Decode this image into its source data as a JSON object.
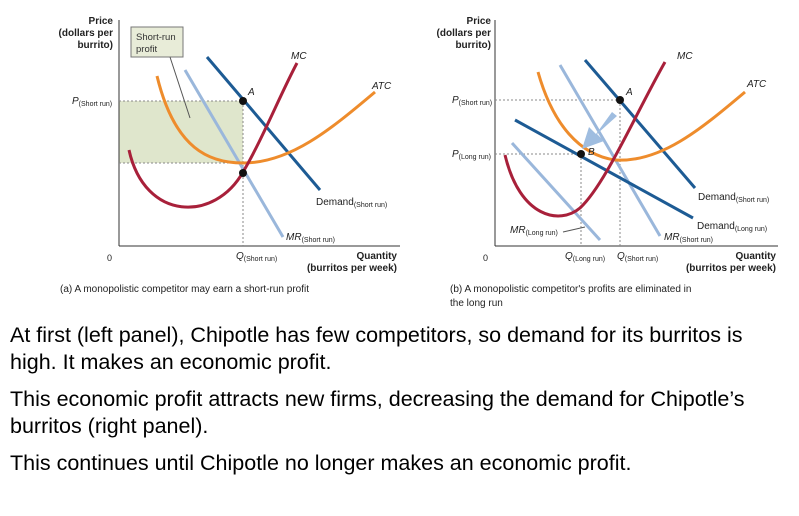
{
  "left_panel": {
    "y_axis_title": [
      "Price",
      "(dollars per",
      "burrito)"
    ],
    "x_axis_title": [
      "Quantity",
      "(burritos per week)"
    ],
    "origin": "0",
    "profit_box_label": [
      "Short-run",
      "profit"
    ],
    "labels": {
      "mc": "MC",
      "atc": "ATC",
      "point_a": "A",
      "demand": "Demand",
      "demand_sub": "(Short run)",
      "mr": "MR",
      "mr_sub": "(Short run)",
      "price": "P",
      "price_sub": "(Short run)",
      "quantity": "Q",
      "quantity_sub": "(Short run)"
    },
    "caption": "(a) A monopolistic competitor may earn a short-run profit"
  },
  "right_panel": {
    "y_axis_title": [
      "Price",
      "(dollars per",
      "burrito)"
    ],
    "x_axis_title": [
      "Quantity",
      "(burritos per week)"
    ],
    "origin": "0",
    "labels": {
      "mc": "MC",
      "atc": "ATC",
      "point_a": "A",
      "point_b": "B",
      "demand_sr": "Demand",
      "demand_sr_sub": "(Short run)",
      "demand_lr": "Demand",
      "demand_lr_sub": "(Long run)",
      "mr_sr": "MR",
      "mr_sr_sub": "(Short run)",
      "mr_lr": "MR",
      "mr_lr_sub": "(Long run)",
      "price_sr": "P",
      "price_sr_sub": "(Short run)",
      "price_lr": "P",
      "price_lr_sub": "(Long run)",
      "q_lr": "Q",
      "q_lr_sub": "(Long run)",
      "q_sr": "Q",
      "q_sr_sub": "(Short run)"
    },
    "caption": [
      "(b) A monopolistic competitor's profits are eliminated in",
      "the long run"
    ]
  },
  "colors": {
    "mc": "#a8203a",
    "atc": "#ee8c2c",
    "demand": "#1d5b94",
    "mr": "#9ab7db",
    "profit_fill": "#dfe6cc",
    "shift_arrow": "#9fbde0"
  },
  "paragraphs": [
    "At first (left panel), Chipotle has few competitors, so demand for its burritos is high. It makes an economic profit.",
    "This economic profit attracts new firms, decreasing the demand for Chipotle’s burritos (right panel).",
    "This continues until Chipotle no longer makes an economic profit."
  ]
}
